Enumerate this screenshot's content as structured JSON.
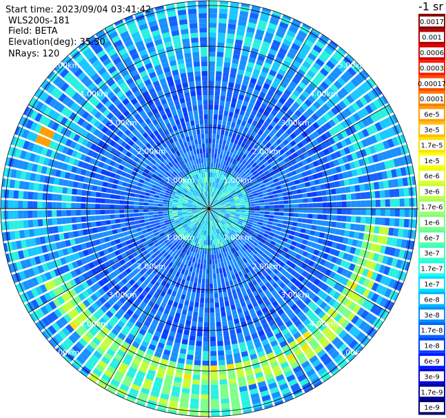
{
  "header": {
    "start_time": "Start time: 2023/09/04 03:41:42",
    "device": "WLS200s-181",
    "field": "Field: BETA",
    "elevation": "Elevation(deg): 35.30",
    "nrays": "NRays: 120"
  },
  "colorbar": {
    "unit": "-1 sr",
    "labels": [
      "0.0017",
      "0.001",
      "0.0006",
      "0.0003",
      "0.00017",
      "0.0001",
      "6e-5",
      "3e-5",
      "1.7e-5",
      "1e-5",
      "6e-6",
      "3e-6",
      "1.7e-6",
      "1e-6",
      "6e-7",
      "3e-7",
      "1.7e-7",
      "1e-7",
      "6e-8",
      "3e-8",
      "1.7e-8",
      "1e-8",
      "6e-9",
      "3e-9",
      "1.7e-9",
      "1e-9"
    ],
    "colors": [
      "#8b0000",
      "#b20000",
      "#d80000",
      "#ff1a00",
      "#ff4a00",
      "#ff7a00",
      "#ff9e00",
      "#ffbf00",
      "#ffe000",
      "#ffff00",
      "#e6ff19",
      "#c4ff3b",
      "#9fff60",
      "#7dff82",
      "#5bffa3",
      "#3bffc4",
      "#19ffe6",
      "#00e0ff",
      "#00b8ff",
      "#0090ff",
      "#0068ff",
      "#0040ff",
      "#0018ff",
      "#0000d8",
      "#0000a0",
      "#00006e"
    ],
    "text_colors": [
      "#ffffff",
      "#ffffff",
      "#ffffff",
      "#ffffff",
      "#000000",
      "#000000",
      "#000000",
      "#000000",
      "#000000",
      "#000000",
      "#000000",
      "#000000",
      "#000000",
      "#000000",
      "#000000",
      "#000000",
      "#000000",
      "#000000",
      "#000000",
      "#000000",
      "#ffffff",
      "#ffffff",
      "#ffffff",
      "#ffffff",
      "#ffffff",
      "#ffffff"
    ]
  },
  "chart_data": {
    "type": "heatmap",
    "projection": "polar (PPI scan)",
    "rays": 120,
    "range_rings_km": [
      1,
      2,
      3,
      4,
      5
    ],
    "ring_labels": [
      "1.00km",
      "2.00km",
      "3.00km",
      "4.00km",
      "5.00km"
    ],
    "grid": true,
    "spokes_deg": [
      0,
      30,
      60,
      90,
      120,
      150,
      180,
      210,
      240,
      270,
      300,
      330
    ],
    "dominant_value_range": "1e-8 to 3e-8",
    "features": [
      {
        "description": "enhanced backscatter ring",
        "range_km": 5.6,
        "azimuth_start_deg": 95,
        "azimuth_end_deg": 245,
        "value_approx": "3e-5"
      },
      {
        "description": "moderate band",
        "range_km_from": 3.8,
        "range_km_to": 4.4,
        "value_approx": "1e-7"
      }
    ]
  }
}
